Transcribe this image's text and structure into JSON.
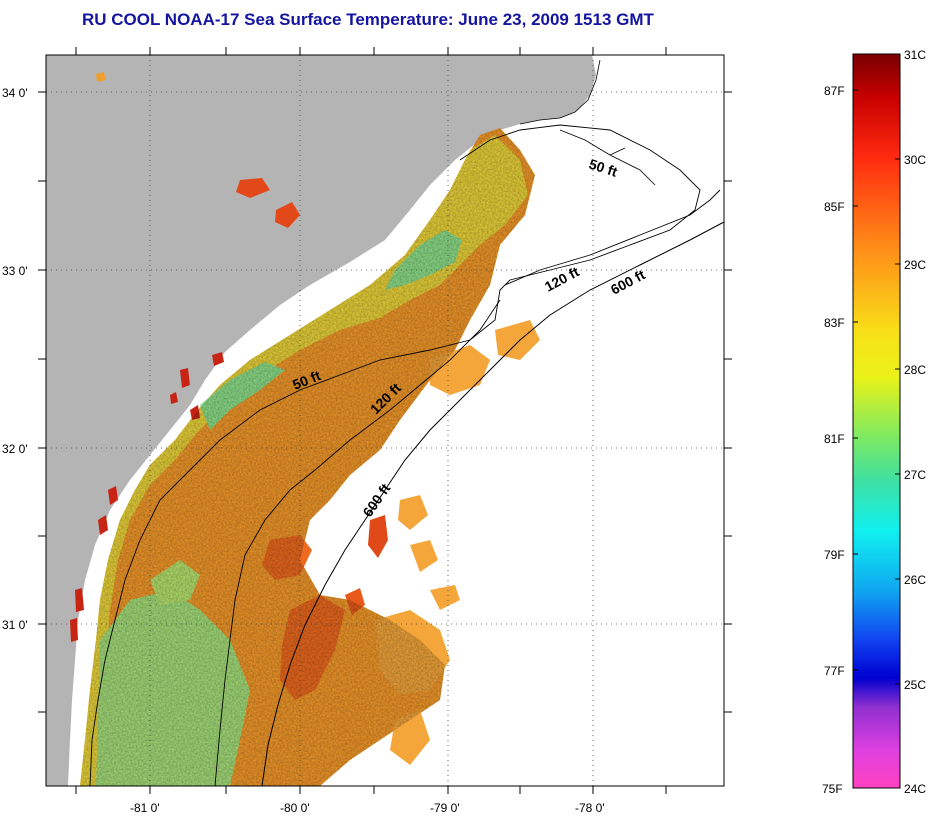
{
  "title": "RU COOL  NOAA-17  Sea Surface Temperature:  June 23, 2009 1513 GMT",
  "map": {
    "lon_ticks": [
      "-81 0'",
      "-80 0'",
      "-79 0'",
      "-78 0'"
    ],
    "lat_ticks": [
      "34 0'",
      "33 0'",
      "32 0'",
      "31 0'"
    ],
    "isobath_labels": [
      "50 ft",
      "120 ft",
      "600 ft",
      "50 ft",
      "120 ft",
      "600 ft"
    ],
    "colors": {
      "land": "#b4b4b4",
      "no_data": "#ffffff",
      "grid": "#333333"
    }
  },
  "colorbar": {
    "celsius_labels": [
      "31C",
      "30C",
      "29C",
      "28C",
      "27C",
      "26C",
      "25C",
      "24C"
    ],
    "fahrenheit_labels": [
      "87F",
      "85F",
      "83F",
      "81F",
      "79F",
      "77F",
      "75F"
    ],
    "range_c": [
      24,
      31
    ]
  }
}
